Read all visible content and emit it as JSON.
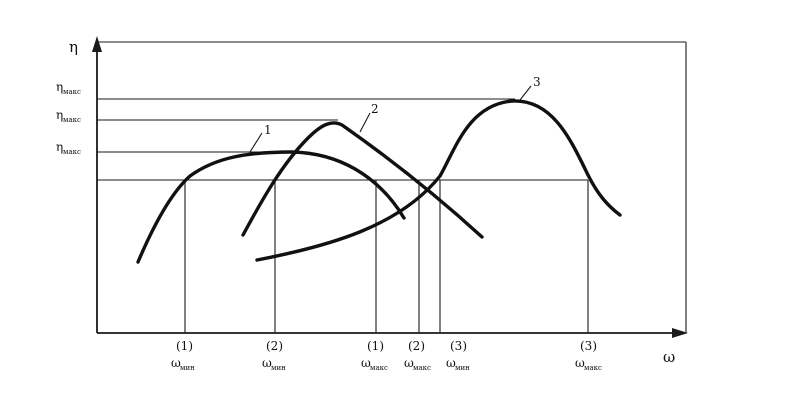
{
  "axes": {
    "y_label": "η",
    "x_label": "ω"
  },
  "eta_levels": [
    {
      "symbol": "η",
      "subscript": "макс"
    },
    {
      "symbol": "η",
      "subscript": "макс"
    },
    {
      "symbol": "η",
      "subscript": "макс"
    }
  ],
  "curve_labels": [
    "1",
    "2",
    "3"
  ],
  "omega_marks": [
    {
      "index": "(1)",
      "symbol": "ω",
      "subscript": "мин"
    },
    {
      "index": "(2)",
      "symbol": "ω",
      "subscript": "мин"
    },
    {
      "index": "(1)",
      "symbol": "ω",
      "subscript": "макс"
    },
    {
      "index": "(2)",
      "symbol": "ω",
      "subscript": "макс"
    },
    {
      "index": "(3)",
      "symbol": "ω",
      "subscript": "мин"
    },
    {
      "index": "(3)",
      "symbol": "ω",
      "subscript": "макс"
    }
  ]
}
